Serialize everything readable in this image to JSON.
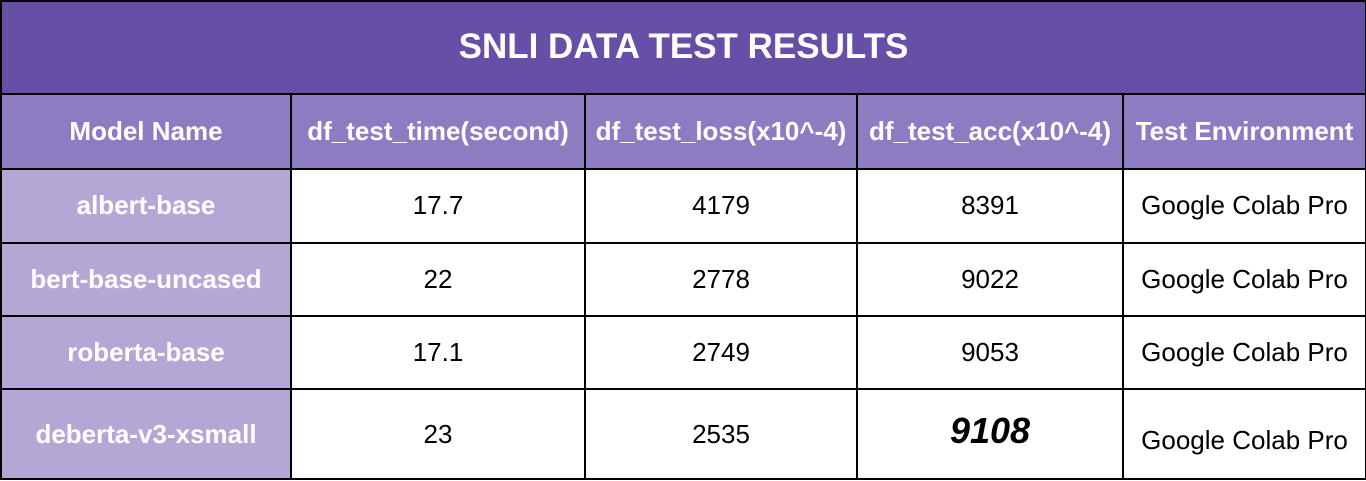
{
  "chart_data": {
    "type": "table",
    "title": "SNLI DATA TEST RESULTS",
    "columns": [
      "Model Name",
      "df_test_time(second)",
      "df_test_loss(x10^-4)",
      "df_test_acc(x10^-4)",
      "Test Environment"
    ],
    "rows": [
      [
        "albert-base",
        "17.7",
        "4179",
        "8391",
        "Google Colab Pro"
      ],
      [
        "bert-base-uncased",
        "22",
        "2778",
        "9022",
        "Google Colab Pro"
      ],
      [
        "roberta-base",
        "17.1",
        "2749",
        "9053",
        "Google Colab Pro"
      ],
      [
        "deberta-v3-xsmall",
        "23",
        "2535",
        "9108",
        "Google Colab Pro"
      ]
    ],
    "highlight": {
      "row": 3,
      "column": 3,
      "style": "bold-italic"
    }
  },
  "colors": {
    "title_bg": "#674ea7",
    "header_bg": "#8e7cc3",
    "model_bg": "#b4a7d6",
    "border": "#000000"
  }
}
